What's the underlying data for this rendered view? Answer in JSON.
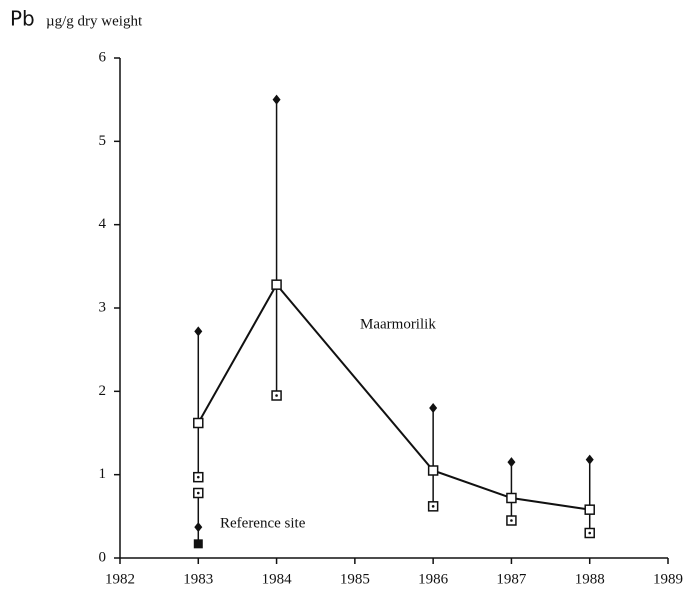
{
  "chart_data": {
    "type": "line",
    "element_label": "Pb",
    "y_label": "µg/g dry weight",
    "xlim": [
      1982,
      1989
    ],
    "xticks": [
      1982,
      1983,
      1984,
      1985,
      1986,
      1987,
      1988,
      1989
    ],
    "ylim": [
      0,
      6
    ],
    "yticks": [
      0,
      1,
      2,
      3,
      4,
      5,
      6
    ],
    "color": "#111111",
    "series": [
      {
        "name": "Maarmorilik",
        "x": [
          1983,
          1984,
          1986,
          1987,
          1988
        ],
        "values": [
          1.62,
          3.28,
          1.05,
          0.72,
          0.58
        ],
        "max": [
          2.72,
          5.5,
          1.8,
          1.15,
          1.18
        ],
        "min": [
          0.97,
          1.95,
          0.62,
          0.45,
          0.3
        ]
      },
      {
        "name": "Reference site",
        "x": [
          1983,
          1983,
          1983
        ],
        "values": [
          0.78,
          0.37,
          0.17
        ],
        "markers": [
          "square-dot",
          "diamond",
          "square"
        ]
      }
    ]
  }
}
